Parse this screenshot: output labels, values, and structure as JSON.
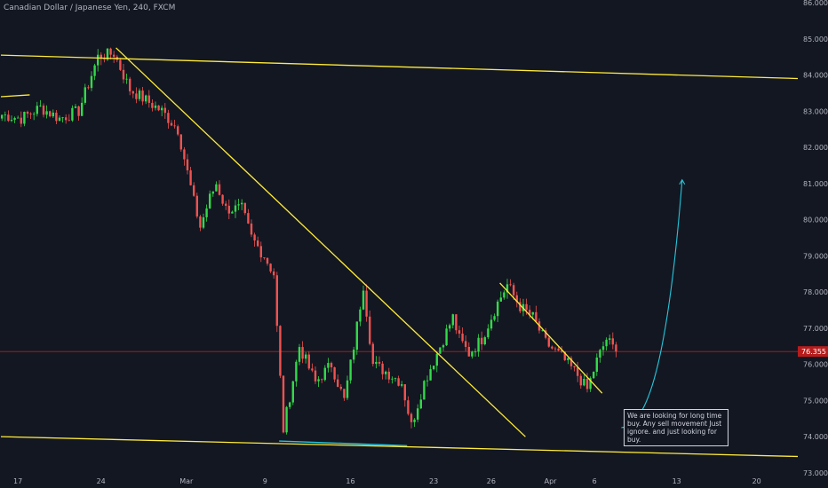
{
  "chart_title": "Canadian Dollar / Japanese Yen, 240, FXCM",
  "current_price_label": "76.355",
  "current_price": 76.355,
  "annotation_text": "We are looking for long time buy.  Any sell movement Just ignore. and just looking for buy.",
  "colors": {
    "background": "#131722",
    "up_candle": "#26a69a",
    "up_candle_bright": "#33d94a",
    "down_candle": "#ef5350",
    "trendline": "#ffeb3b",
    "support_line": "#26c6da",
    "projection": "#26c6da",
    "price_line": "#b71c1c",
    "axis_text": "#b2b5be"
  },
  "chart_data": {
    "type": "candlestick",
    "title": "Canadian Dollar / Japanese Yen, 240, FXCM",
    "ylim": [
      72.9,
      86.0
    ],
    "y_ticks": [
      "73.000",
      "74.000",
      "75.000",
      "76.000",
      "77.000",
      "78.000",
      "79.000",
      "80.000",
      "81.000",
      "82.000",
      "83.000",
      "84.000",
      "85.000",
      "86.000"
    ],
    "y_tick_values": [
      73,
      74,
      75,
      76,
      77,
      78,
      79,
      80,
      81,
      82,
      83,
      84,
      85,
      86
    ],
    "x_ticks": [
      "17",
      "24",
      "Mar",
      "9",
      "16",
      "23",
      "26",
      "Apr",
      "6",
      "13",
      "20"
    ],
    "x_tick_index": [
      5,
      31,
      57,
      83,
      109,
      135,
      153,
      171,
      186,
      211,
      236
    ],
    "n_bars": 250,
    "price_path": [
      [
        0,
        82.9
      ],
      [
        6,
        82.8
      ],
      [
        12,
        83.1
      ],
      [
        18,
        82.8
      ],
      [
        24,
        83.0
      ],
      [
        30,
        84.5
      ],
      [
        35,
        84.6
      ],
      [
        40,
        83.6
      ],
      [
        45,
        83.3
      ],
      [
        50,
        83.0
      ],
      [
        55,
        82.5
      ],
      [
        60,
        80.5
      ],
      [
        62,
        79.8
      ],
      [
        65,
        80.6
      ],
      [
        67,
        81.0
      ],
      [
        70,
        80.3
      ],
      [
        75,
        80.3
      ],
      [
        78,
        79.5
      ],
      [
        82,
        79.0
      ],
      [
        85,
        78.5
      ],
      [
        86,
        77.0
      ],
      [
        88,
        74.2
      ],
      [
        93,
        76.5
      ],
      [
        98,
        75.5
      ],
      [
        103,
        76.0
      ],
      [
        107,
        75.0
      ],
      [
        110,
        76.5
      ],
      [
        113,
        78.2
      ],
      [
        116,
        76.0
      ],
      [
        120,
        75.8
      ],
      [
        125,
        75.5
      ],
      [
        128,
        74.3
      ],
      [
        132,
        75.5
      ],
      [
        137,
        76.5
      ],
      [
        141,
        77.3
      ],
      [
        143,
        76.7
      ],
      [
        146,
        76.3
      ],
      [
        150,
        76.7
      ],
      [
        155,
        77.7
      ],
      [
        158,
        78.2
      ],
      [
        162,
        77.6
      ],
      [
        166,
        77.3
      ],
      [
        170,
        76.6
      ],
      [
        175,
        76.2
      ],
      [
        180,
        75.7
      ],
      [
        183,
        75.3
      ],
      [
        186,
        76.1
      ],
      [
        189,
        76.7
      ],
      [
        192,
        76.355
      ]
    ],
    "trendlines": [
      {
        "name": "upper-channel",
        "points": [
          [
            0,
            84.55
          ],
          [
            250,
            83.9
          ]
        ]
      },
      {
        "name": "lower-channel",
        "points": [
          [
            0,
            74.0
          ],
          [
            250,
            73.45
          ]
        ]
      },
      {
        "name": "major-downtrend",
        "points": [
          [
            36,
            84.75
          ],
          [
            164,
            74.0
          ]
        ]
      },
      {
        "name": "minor-downtrend",
        "points": [
          [
            156,
            78.25
          ],
          [
            188,
            75.2
          ]
        ]
      },
      {
        "name": "left-stub",
        "points": [
          [
            0,
            83.4
          ],
          [
            9,
            83.45
          ]
        ]
      }
    ],
    "support_segment": {
      "points": [
        [
          87,
          73.88
        ],
        [
          127,
          73.75
        ]
      ]
    },
    "projection_curve": {
      "points": [
        [
          194,
          74.25
        ],
        [
          201,
          74.3
        ],
        [
          208,
          75.5
        ],
        [
          213,
          81.1
        ]
      ]
    },
    "grid": false
  }
}
